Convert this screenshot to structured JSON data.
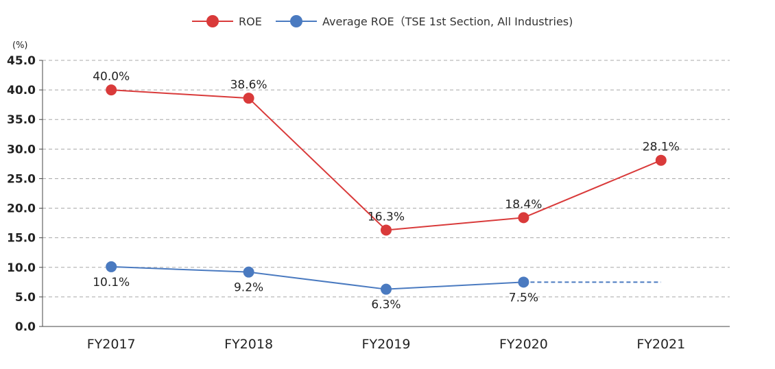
{
  "chart_data": {
    "type": "line",
    "unit_label": "(%)",
    "categories": [
      "FY2017",
      "FY2018",
      "FY2019",
      "FY2020",
      "FY2021"
    ],
    "ylim": [
      0,
      45
    ],
    "yticks": [
      0,
      5,
      10,
      15,
      20,
      25,
      30,
      35,
      40,
      45
    ],
    "ytick_labels": [
      "0.0",
      "5.0",
      "10.0",
      "15.0",
      "20.0",
      "25.0",
      "30.0",
      "35.0",
      "40.0",
      "45.0"
    ],
    "grid": true,
    "legend": "top-center",
    "series": [
      {
        "name": "ROE",
        "color": "#d93a3a",
        "values": [
          40.0,
          38.6,
          16.3,
          18.4,
          28.1
        ],
        "labels": [
          "40.0%",
          "38.6%",
          "16.3%",
          "18.4%",
          "28.1%"
        ],
        "label_position": "above",
        "markers": [
          true,
          true,
          true,
          true,
          true
        ],
        "dashed_segments": []
      },
      {
        "name": "Average ROE（TSE 1st Section, All Industries)",
        "color": "#4a7ac0",
        "values": [
          10.1,
          9.2,
          6.3,
          7.5,
          7.5
        ],
        "labels": [
          "10.1%",
          "9.2%",
          "6.3%",
          "7.5%",
          ""
        ],
        "label_position": "below",
        "markers": [
          true,
          true,
          true,
          true,
          false
        ],
        "dashed_segments": [
          3
        ]
      }
    ]
  }
}
